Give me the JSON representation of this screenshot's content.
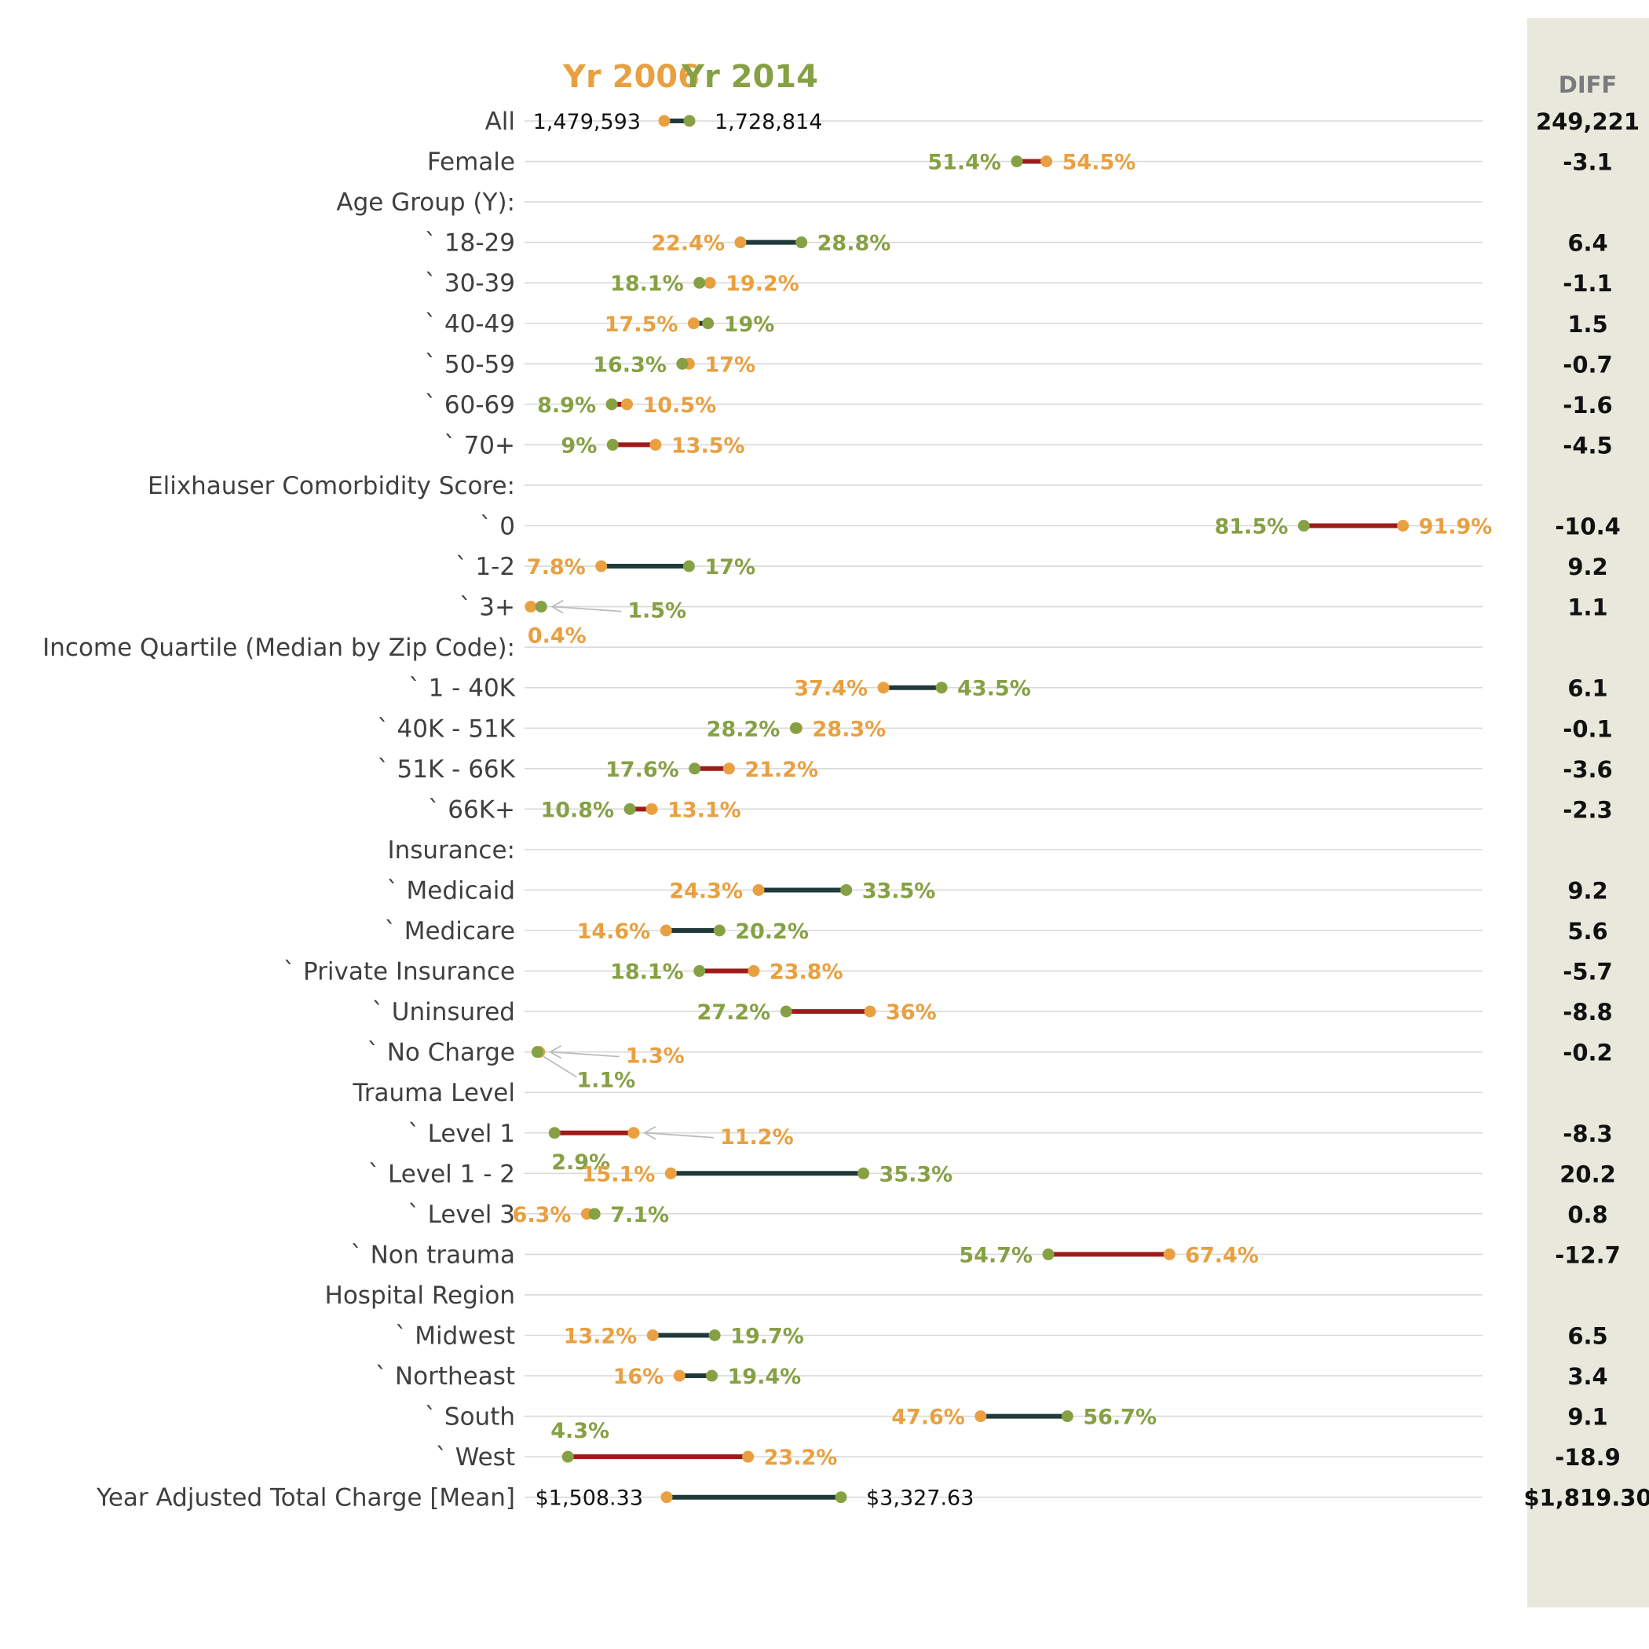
{
  "chart_data": {
    "type": "dumbbell",
    "legend": [
      {
        "name": "Yr 2006",
        "color": "#E8A040"
      },
      {
        "name": "Yr 2014",
        "color": "#86A044"
      }
    ],
    "diff_header": "DIFF",
    "colors": {
      "yr2006": "#E8A040",
      "yr2014": "#86A044",
      "increase": "#203A3A",
      "decrease": "#A01A1A",
      "grid": "#D9D9D9",
      "diff_panel": "#E8E8DC",
      "row_text": "#3f3f3f"
    },
    "x_range": [
      0,
      100
    ],
    "rows": [
      {
        "label": "All",
        "kind": "count",
        "v2006": 1479593,
        "v2014": 1728814,
        "l2006": "1,479,593",
        "l2014": "1,728,814",
        "diff": "249,221"
      },
      {
        "label": "Female",
        "v2006": 54.5,
        "v2014": 51.4,
        "l2006": "54.5%",
        "l2014": "51.4%",
        "diff": "-3.1"
      },
      {
        "label": "Age Group (Y):",
        "header": true
      },
      {
        "label": "` 18-29",
        "v2006": 22.4,
        "v2014": 28.8,
        "l2006": "22.4%",
        "l2014": "28.8%",
        "diff": "6.4"
      },
      {
        "label": "` 30-39",
        "v2006": 19.2,
        "v2014": 18.1,
        "l2006": "19.2%",
        "l2014": "18.1%",
        "diff": "-1.1"
      },
      {
        "label": "` 40-49",
        "v2006": 17.5,
        "v2014": 19.0,
        "l2006": "17.5%",
        "l2014": "19%",
        "diff": "1.5"
      },
      {
        "label": "` 50-59",
        "v2006": 17.0,
        "v2014": 16.3,
        "l2006": "17%",
        "l2014": "16.3%",
        "diff": "-0.7"
      },
      {
        "label": "` 60-69",
        "v2006": 10.5,
        "v2014": 8.9,
        "l2006": "10.5%",
        "l2014": "8.9%",
        "diff": "-1.6"
      },
      {
        "label": "` 70+",
        "v2006": 13.5,
        "v2014": 9.0,
        "l2006": "13.5%",
        "l2014": "9%",
        "diff": "-4.5"
      },
      {
        "label": "Elixhauser Comorbidity Score:",
        "header": true
      },
      {
        "label": "` 0",
        "v2006": 91.9,
        "v2014": 81.5,
        "l2006": "91.9%",
        "l2014": "81.5%",
        "diff": "-10.4"
      },
      {
        "label": "` 1-2",
        "v2006": 7.8,
        "v2014": 17.0,
        "l2006": "7.8%",
        "l2014": "17%",
        "diff": "9.2"
      },
      {
        "label": "` 3+",
        "v2006": 0.4,
        "v2014": 1.5,
        "l2006": "0.4%",
        "l2014": "1.5%",
        "diff": "1.1",
        "callout2006": "below",
        "callout2014": "arrow"
      },
      {
        "label": "Income Quartile (Median by Zip Code):",
        "header": true
      },
      {
        "label": "` 1 - 40K",
        "v2006": 37.4,
        "v2014": 43.5,
        "l2006": "37.4%",
        "l2014": "43.5%",
        "diff": "6.1"
      },
      {
        "label": "` 40K - 51K",
        "v2006": 28.3,
        "v2014": 28.2,
        "l2006": "28.3%",
        "l2014": "28.2%",
        "diff": "-0.1"
      },
      {
        "label": "` 51K - 66K",
        "v2006": 21.2,
        "v2014": 17.6,
        "l2006": "21.2%",
        "l2014": "17.6%",
        "diff": "-3.6"
      },
      {
        "label": "` 66K+",
        "v2006": 13.1,
        "v2014": 10.8,
        "l2006": "13.1%",
        "l2014": "10.8%",
        "diff": "-2.3"
      },
      {
        "label": "Insurance:",
        "header": true
      },
      {
        "label": "` Medicaid",
        "v2006": 24.3,
        "v2014": 33.5,
        "l2006": "24.3%",
        "l2014": "33.5%",
        "diff": "9.2"
      },
      {
        "label": "` Medicare",
        "v2006": 14.6,
        "v2014": 20.2,
        "l2006": "14.6%",
        "l2014": "20.2%",
        "diff": "5.6"
      },
      {
        "label": "` Private Insurance",
        "v2006": 23.8,
        "v2014": 18.1,
        "l2006": "23.8%",
        "l2014": "18.1%",
        "diff": "-5.7"
      },
      {
        "label": "` Uninsured",
        "v2006": 36.0,
        "v2014": 27.2,
        "l2006": "36%",
        "l2014": "27.2%",
        "diff": "-8.8"
      },
      {
        "label": "` No Charge",
        "v2006": 1.3,
        "v2014": 1.1,
        "l2006": "1.3%",
        "l2014": "1.1%",
        "diff": "-0.2",
        "callout2006": "arrow",
        "callout2014": "arrow-below"
      },
      {
        "label": "Trauma Level",
        "header": true
      },
      {
        "label": "` Level 1",
        "v2006": 11.2,
        "v2014": 2.9,
        "l2006": "11.2%",
        "l2014": "2.9%",
        "diff": "-8.3",
        "callout2006": "arrow",
        "callout2014": "below"
      },
      {
        "label": "` Level 1 - 2",
        "v2006": 15.1,
        "v2014": 35.3,
        "l2006": "15.1%",
        "l2014": "35.3%",
        "diff": "20.2"
      },
      {
        "label": "` Level 3",
        "v2006": 6.3,
        "v2014": 7.1,
        "l2006": "6.3%",
        "l2014": "7.1%",
        "diff": "0.8"
      },
      {
        "label": "` Non trauma",
        "v2006": 67.4,
        "v2014": 54.7,
        "l2006": "67.4%",
        "l2014": "54.7%",
        "diff": "-12.7"
      },
      {
        "label": "Hospital Region",
        "header": true
      },
      {
        "label": "` Midwest",
        "v2006": 13.2,
        "v2014": 19.7,
        "l2006": "13.2%",
        "l2014": "19.7%",
        "diff": "6.5"
      },
      {
        "label": "` Northeast",
        "v2006": 16.0,
        "v2014": 19.4,
        "l2006": "16%",
        "l2014": "19.4%",
        "diff": "3.4"
      },
      {
        "label": "` South",
        "v2006": 47.6,
        "v2014": 56.7,
        "l2006": "47.6%",
        "l2014": "56.7%",
        "diff": "9.1"
      },
      {
        "label": "` West",
        "v2006": 23.2,
        "v2014": 4.3,
        "l2006": "23.2%",
        "l2014": "4.3%",
        "diff": "-18.9",
        "callout2014": "above"
      },
      {
        "label": "Year Adjusted Total Charge [Mean]",
        "kind": "money",
        "v2006": 1508.33,
        "v2014": 3327.63,
        "l2006": "$1,508.33",
        "l2014": "$3,327.63",
        "diff": "$1,819.30"
      }
    ]
  }
}
